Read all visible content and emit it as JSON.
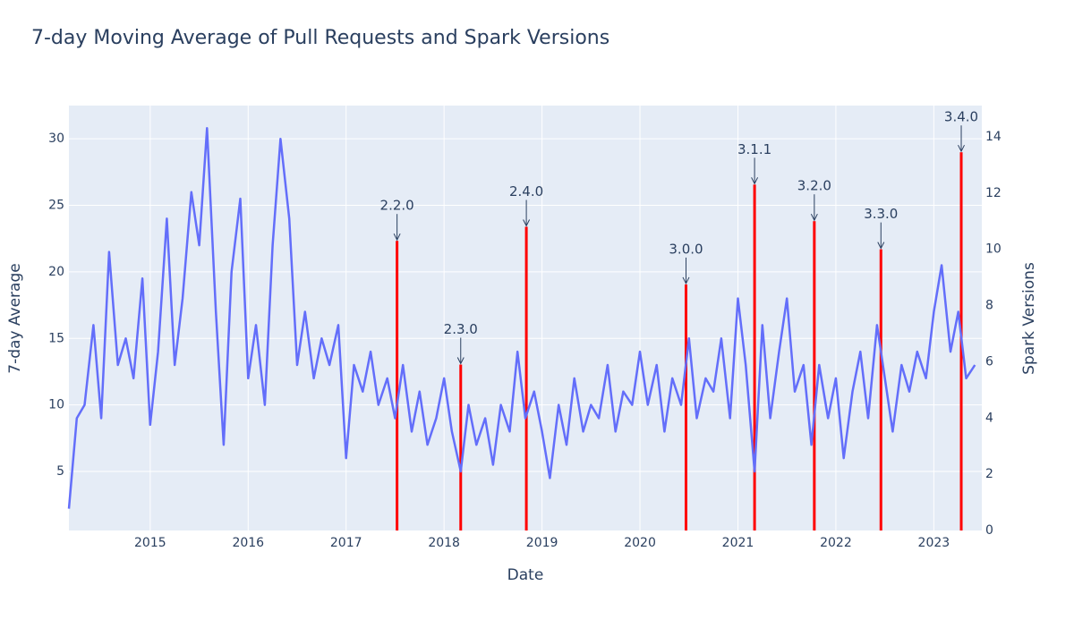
{
  "chart_data": {
    "type": "line",
    "title": "7-day Moving Average of Pull Requests and Spark Versions",
    "x_label": "Date",
    "y_label": "7-day Average",
    "y2_label": "Spark Versions",
    "xlim": [
      2014.17,
      2023.49
    ],
    "xticks": [
      2015,
      2016,
      2017,
      2018,
      2019,
      2020,
      2021,
      2022,
      2023
    ],
    "ylim": [
      0.56,
      32.5
    ],
    "yticks": [
      5,
      10,
      15,
      20,
      25,
      30
    ],
    "y2lim": [
      0,
      15.11
    ],
    "y2ticks": [
      0,
      2,
      4,
      6,
      8,
      10,
      12,
      14
    ],
    "grid": true,
    "series": [
      {
        "type": "line",
        "color": "#636efa",
        "x": [
          2014.17,
          2014.25,
          2014.33,
          2014.42,
          2014.5,
          2014.58,
          2014.67,
          2014.75,
          2014.83,
          2014.92,
          2015.0,
          2015.08,
          2015.17,
          2015.25,
          2015.33,
          2015.42,
          2015.5,
          2015.58,
          2015.67,
          2015.75,
          2015.83,
          2015.92,
          2016.0,
          2016.08,
          2016.17,
          2016.25,
          2016.33,
          2016.42,
          2016.5,
          2016.58,
          2016.67,
          2016.75,
          2016.83,
          2016.92,
          2017.0,
          2017.08,
          2017.17,
          2017.25,
          2017.33,
          2017.42,
          2017.5,
          2017.58,
          2017.67,
          2017.75,
          2017.83,
          2017.92,
          2018.0,
          2018.08,
          2018.17,
          2018.25,
          2018.33,
          2018.42,
          2018.5,
          2018.58,
          2018.67,
          2018.75,
          2018.83,
          2018.92,
          2019.0,
          2019.08,
          2019.17,
          2019.25,
          2019.33,
          2019.42,
          2019.5,
          2019.58,
          2019.67,
          2019.75,
          2019.83,
          2019.92,
          2020.0,
          2020.08,
          2020.17,
          2020.25,
          2020.33,
          2020.42,
          2020.5,
          2020.58,
          2020.67,
          2020.75,
          2020.83,
          2020.92,
          2021.0,
          2021.08,
          2021.17,
          2021.25,
          2021.33,
          2021.42,
          2021.5,
          2021.58,
          2021.67,
          2021.75,
          2021.83,
          2021.92,
          2022.0,
          2022.08,
          2022.17,
          2022.25,
          2022.33,
          2022.42,
          2022.5,
          2022.58,
          2022.67,
          2022.75,
          2022.83,
          2022.92,
          2023.0,
          2023.08,
          2023.17,
          2023.25,
          2023.33,
          2023.42
        ],
        "values": [
          2.2,
          9,
          10,
          16,
          9,
          21.5,
          13,
          15,
          12,
          19.5,
          8.5,
          14,
          24,
          13,
          18,
          26,
          22,
          30.8,
          17,
          7,
          20,
          25.5,
          12,
          16,
          10,
          22,
          30,
          24,
          13,
          17,
          12,
          15,
          13,
          16,
          6,
          13,
          11,
          14,
          10,
          12,
          9,
          13,
          8,
          11,
          7,
          9,
          12,
          8,
          5,
          10,
          7,
          9,
          5.5,
          10,
          8,
          14,
          9,
          11,
          8,
          4.5,
          10,
          7,
          12,
          8,
          10,
          9,
          13,
          8,
          11,
          10,
          14,
          10,
          13,
          8,
          12,
          10,
          15,
          9,
          12,
          11,
          15,
          9,
          18,
          13,
          5,
          16,
          9,
          14,
          18,
          11,
          13,
          7,
          13,
          9,
          12,
          6,
          11,
          14,
          9,
          16,
          12,
          8,
          13,
          11,
          14,
          12,
          17,
          20.5,
          14,
          17,
          12,
          13
        ]
      },
      {
        "type": "bar",
        "axis": "y2",
        "color": "#ff0000",
        "x": [
          2017.52,
          2018.17,
          2018.84,
          2020.47,
          2021.17,
          2021.78,
          2022.46,
          2023.28
        ],
        "values": [
          10.3,
          5.9,
          10.8,
          8.75,
          12.3,
          11.0,
          10.0,
          13.45
        ],
        "labels": [
          "2.2.0",
          "2.3.0",
          "2.4.0",
          "3.0.0",
          "3.1.1",
          "3.2.0",
          "3.3.0",
          "3.4.0"
        ]
      }
    ]
  }
}
